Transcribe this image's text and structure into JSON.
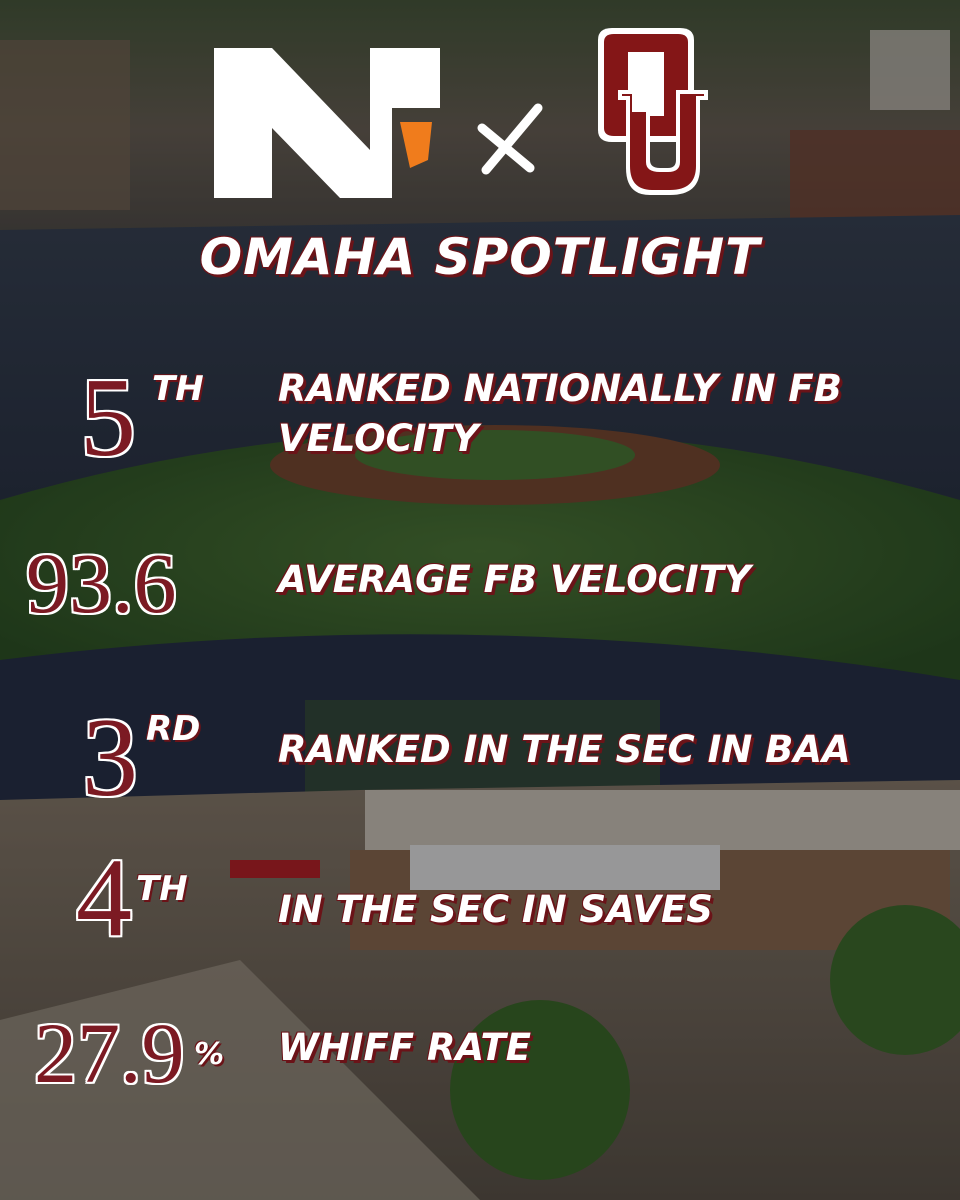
{
  "title": "OMAHA SPOTLIGHT",
  "stats": [
    {
      "value": 5,
      "suffix": "TH",
      "label": "RANKED NATIONALLY IN FB VELOCITY"
    },
    {
      "value": 93.6,
      "label": "AVERAGE FB VELOCITY"
    },
    {
      "value": 3,
      "suffix": "RD",
      "label": "RANKED IN THE SEC IN BAA"
    },
    {
      "value": 4,
      "suffix": "TH",
      "label": "IN THE SEC IN SAVES"
    },
    {
      "value": 27.9,
      "suffix": "%",
      "label": "WHIFF RATE"
    }
  ]
}
